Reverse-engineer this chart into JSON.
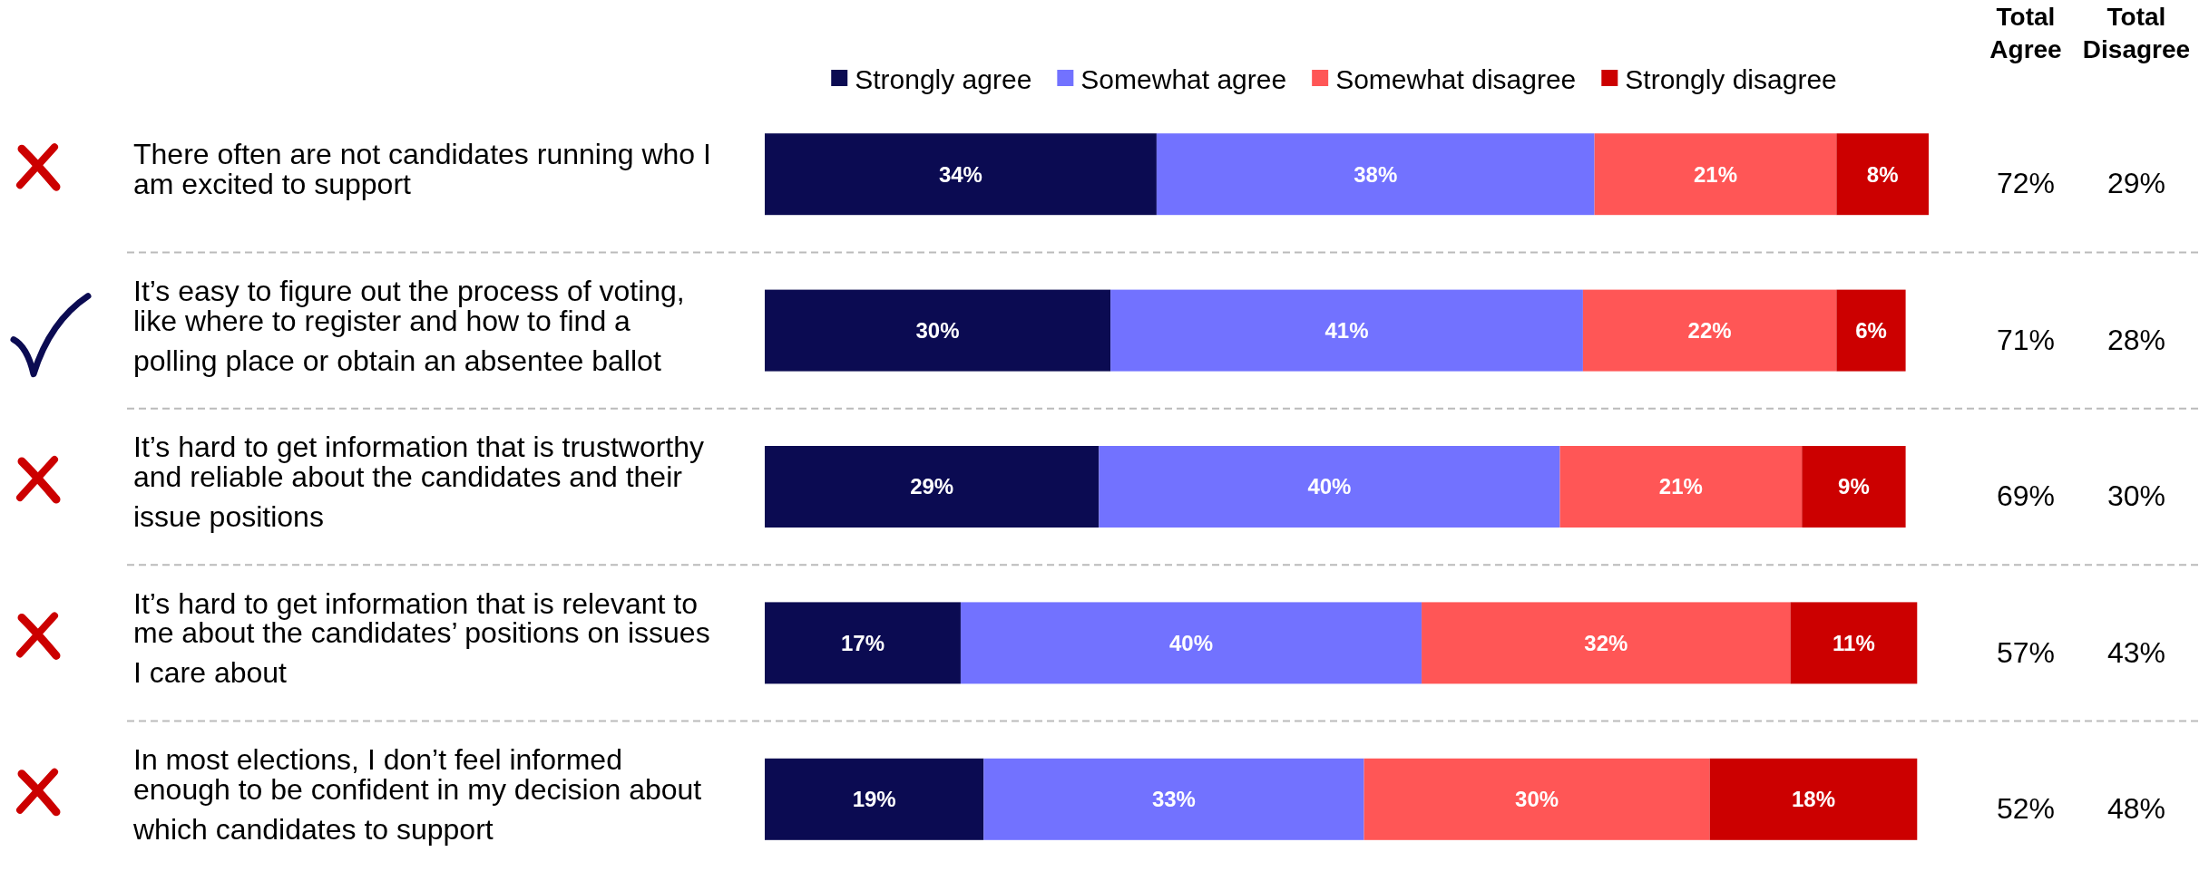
{
  "chart_data": {
    "type": "bar",
    "orientation": "horizontal",
    "stacked": true,
    "legend": "top",
    "xlim": [
      0,
      101
    ],
    "categories": [
      "There often are not candidates running who I am excited to support",
      "It’s easy to figure out the process of voting, like where to register and how to find a polling place or obtain an absentee ballot",
      "It’s hard to get information that is trustworthy and reliable about the candidates and their issue positions",
      "It’s hard to get information that is relevant to me about the candidates’ positions on issues I care about",
      "In most elections, I don’t feel informed enough to be confident in my decision about which candidates to support"
    ],
    "series": [
      {
        "name": "Strongly agree",
        "color": "#0b0b52",
        "values": [
          34,
          30,
          29,
          17,
          19
        ],
        "value_labels": [
          "34%",
          "30%",
          "29%",
          "17%",
          "19%"
        ]
      },
      {
        "name": "Somewhat agree",
        "color": "#7272ff",
        "values": [
          38,
          41,
          40,
          40,
          33
        ],
        "value_labels": [
          "38%",
          "41%",
          "40%",
          "40%",
          "33%"
        ]
      },
      {
        "name": "Somewhat disagree",
        "color": "#ff5656",
        "values": [
          21,
          22,
          21,
          32,
          30
        ],
        "value_labels": [
          "21%",
          "22%",
          "21%",
          "32%",
          "30%"
        ]
      },
      {
        "name": "Strongly disagree",
        "color": "#cc0000",
        "values": [
          8,
          6,
          9,
          11,
          18
        ],
        "value_labels": [
          "8%",
          "6%",
          "9%",
          "11%",
          "18%"
        ]
      }
    ],
    "annotations": [
      "Total Agree",
      "Total Disagree",
      "72%",
      "29%",
      "71%",
      "28%",
      "69%",
      "30%",
      "57%",
      "43%",
      "52%",
      "48%"
    ]
  }
}
